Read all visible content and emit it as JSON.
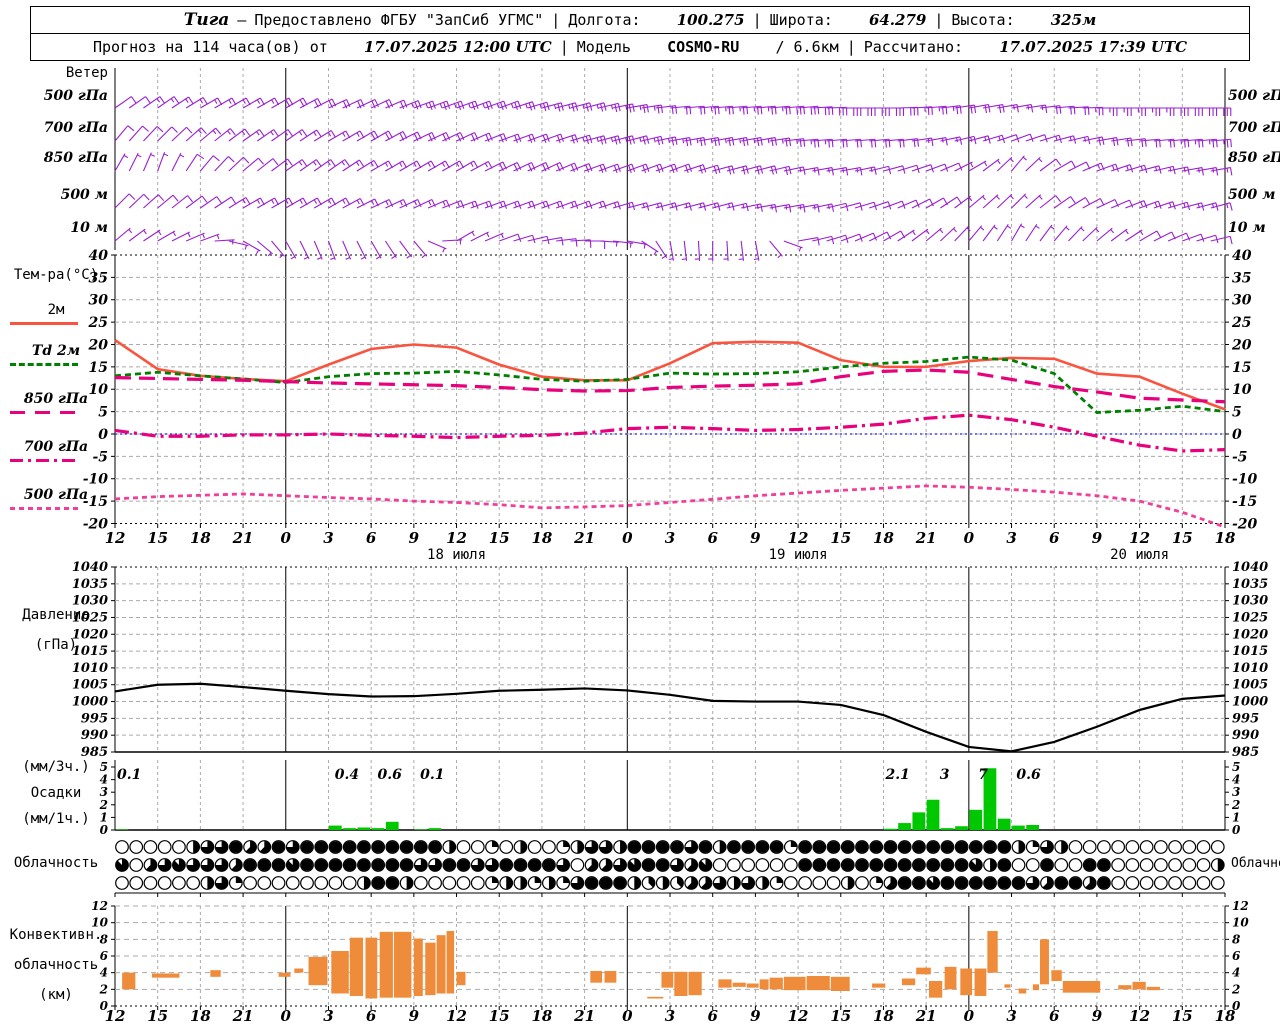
{
  "header": {
    "station": "Тига",
    "dash": "—",
    "provider": "Предоставлено ФГБУ \"ЗапСиб УГМС\"",
    "sep": "|",
    "lon_label": "Долгота:",
    "lon": "100.275",
    "lat_label": "Широта:",
    "lat": "64.279",
    "alt_label": "Высота:",
    "alt": "325м",
    "forecast_label": "Прогноз на 114 часа(ов) от",
    "run_time": "17.07.2025 12:00 UTC",
    "model_label": "Модель",
    "model_name": "COSMO-RU",
    "model_res": "/ 6.6км",
    "calc_label": "Рассчитано:",
    "calc_time": "17.07.2025 17:39 UTC"
  },
  "wind": {
    "title": "Ветер",
    "levels": [
      "500 гПа",
      "700 гПа",
      "850 гПа",
      "500 м",
      "10 м"
    ]
  },
  "temperature": {
    "title": "Тем-ра(°C)",
    "legend": [
      "2м",
      "Td 2м",
      "850 гПа",
      "700 гПа",
      "500 гПа"
    ]
  },
  "pressure_label1": "Давление",
  "pressure_label2": "(гПа)",
  "precip_label1": "(мм/3ч.)",
  "precip_label2": "Осадки",
  "precip_label3": "(мм/1ч.)",
  "cloud_label": "Облачность",
  "conv_label1": "Конвективн.",
  "conv_label2": "облачность",
  "conv_label3": "(км)",
  "colors": {
    "barb": "#9a20d0",
    "t2m": "#f9543f",
    "td2m": "#008000",
    "t850": "#e8007c",
    "t700": "#e8007c",
    "t500": "#f03f9b",
    "pressure": "#000000",
    "precip": "#00c800",
    "convective": "#ef8c3c",
    "grid": "#aaaaaa",
    "zero_line": "#2020ff"
  },
  "chart_data": [
    {
      "id": "time_axis",
      "type": "axis",
      "step_hours": 3,
      "total_hours": 78,
      "hour_labels": [
        12,
        15,
        18,
        21,
        0,
        3,
        6,
        9,
        12,
        15,
        18,
        21,
        0,
        3,
        6,
        9,
        12,
        15,
        18,
        21,
        0,
        3,
        6,
        9,
        12,
        15,
        18
      ],
      "midnight_hours": [
        12,
        36,
        60
      ],
      "dates": [
        {
          "t": 24,
          "label": "18 июля"
        },
        {
          "t": 48,
          "label": "19 июля"
        },
        {
          "t": 72,
          "label": "20 июля"
        }
      ]
    },
    {
      "id": "wind_barbs",
      "type": "barbs",
      "levels": [
        "500 гПа",
        "700 гПа",
        "850 гПа",
        "500 м",
        "10 м"
      ],
      "dirs": [
        [
          55,
          55,
          60,
          60,
          60,
          65,
          65,
          70,
          70,
          70,
          75,
          75,
          80,
          85,
          85,
          85,
          85,
          90,
          90,
          85,
          80,
          80,
          85,
          90,
          90,
          90,
          90
        ],
        [
          40,
          45,
          50,
          55,
          55,
          60,
          60,
          65,
          65,
          70,
          70,
          75,
          75,
          80,
          80,
          80,
          85,
          85,
          85,
          80,
          75,
          70,
          75,
          80,
          85,
          85,
          85
        ],
        [
          30,
          20,
          40,
          50,
          55,
          55,
          60,
          60,
          60,
          65,
          65,
          70,
          70,
          70,
          75,
          75,
          80,
          80,
          75,
          70,
          60,
          40,
          60,
          70,
          75,
          80,
          80
        ],
        [
          45,
          50,
          55,
          60,
          60,
          60,
          65,
          65,
          70,
          70,
          70,
          70,
          75,
          75,
          75,
          80,
          80,
          75,
          70,
          60,
          50,
          45,
          55,
          65,
          70,
          75,
          75
        ],
        [
          50,
          60,
          70,
          120,
          150,
          160,
          150,
          140,
          60,
          70,
          80,
          90,
          100,
          170,
          180,
          170,
          80,
          70,
          60,
          50,
          40,
          30,
          40,
          50,
          60,
          70,
          80
        ]
      ],
      "speeds_kt": [
        [
          10,
          15,
          15,
          15,
          20,
          20,
          20,
          25,
          25,
          25,
          25,
          25,
          25,
          20,
          25,
          25,
          30,
          30,
          30,
          25,
          20,
          15,
          20,
          25,
          25,
          30,
          30
        ],
        [
          10,
          10,
          15,
          15,
          15,
          15,
          20,
          20,
          20,
          20,
          20,
          25,
          25,
          25,
          25,
          25,
          25,
          20,
          20,
          15,
          15,
          10,
          15,
          20,
          20,
          25,
          25
        ],
        [
          5,
          5,
          10,
          10,
          15,
          15,
          15,
          15,
          15,
          20,
          20,
          20,
          20,
          20,
          20,
          20,
          15,
          15,
          10,
          10,
          5,
          5,
          10,
          15,
          15,
          15,
          15
        ],
        [
          10,
          10,
          10,
          15,
          15,
          15,
          15,
          15,
          15,
          15,
          15,
          15,
          15,
          15,
          15,
          15,
          15,
          10,
          10,
          10,
          5,
          5,
          10,
          10,
          15,
          15,
          15
        ],
        [
          5,
          5,
          5,
          5,
          5,
          5,
          5,
          5,
          5,
          8,
          8,
          8,
          5,
          5,
          5,
          5,
          8,
          8,
          8,
          5,
          5,
          3,
          5,
          5,
          8,
          8,
          8
        ]
      ]
    },
    {
      "id": "temperature",
      "type": "line",
      "ylim": [
        -20,
        40
      ],
      "ytick_step": 5,
      "zero_line": 0,
      "series": [
        {
          "name": "2м",
          "style": "solid",
          "values": [
            21,
            14.5,
            13,
            12.3,
            11.8,
            15.5,
            19,
            20,
            19.3,
            15.5,
            12.8,
            12,
            12,
            15.8,
            20.3,
            20.6,
            20.4,
            16.5,
            15,
            15,
            16.3,
            17,
            16.8,
            13.5,
            12.8,
            9,
            5.5
          ]
        },
        {
          "name": "Td 2м",
          "style": "dashed",
          "values": [
            13,
            13.8,
            13,
            12.3,
            11.5,
            12.8,
            13.5,
            13.6,
            14,
            13.2,
            12.2,
            11.8,
            12.2,
            13.6,
            13.4,
            13.5,
            13.9,
            15,
            15.8,
            16.2,
            17.2,
            16.5,
            13.5,
            4.8,
            5.3,
            6.2,
            5
          ]
        },
        {
          "name": "850 гПа",
          "style": "longdash",
          "values": [
            12.6,
            12.4,
            12.2,
            12,
            11.7,
            11.4,
            11.2,
            11,
            10.8,
            10.4,
            9.9,
            9.6,
            9.7,
            10.4,
            10.7,
            10.9,
            11.2,
            12.8,
            14,
            14.3,
            13.8,
            12.2,
            10.6,
            9.4,
            8,
            7.6,
            7.2
          ]
        },
        {
          "name": "700 гПа",
          "style": "dashdot",
          "values": [
            0.8,
            -0.5,
            -0.5,
            -0.2,
            -0.2,
            0,
            -0.3,
            -0.5,
            -0.8,
            -0.5,
            -0.3,
            0.2,
            1.2,
            1.5,
            1.2,
            0.8,
            1,
            1.5,
            2.2,
            3.5,
            4.2,
            3.2,
            1.5,
            -0.5,
            -2.5,
            -3.8,
            -3.5
          ]
        },
        {
          "name": "500 гПа",
          "style": "shortdash",
          "values": [
            -14.5,
            -14,
            -13.7,
            -13.4,
            -13.8,
            -14.2,
            -14.5,
            -15,
            -15.3,
            -15.8,
            -16.5,
            -16.3,
            -16,
            -15.3,
            -14.6,
            -13.8,
            -13.2,
            -12.6,
            -12.1,
            -11.6,
            -11.9,
            -12.4,
            -13,
            -13.8,
            -15,
            -17.5,
            -20.8
          ]
        }
      ]
    },
    {
      "id": "pressure",
      "type": "line",
      "ylim": [
        985,
        1040
      ],
      "ytick_step": 5,
      "values": [
        1003,
        1005,
        1005.3,
        1004.3,
        1003.2,
        1002.2,
        1001.5,
        1001.6,
        1002.3,
        1003.2,
        1003.5,
        1003.9,
        1003.3,
        1002,
        1000.2,
        1000,
        1000,
        999,
        996,
        991,
        986.5,
        985.2,
        988,
        992.5,
        997.5,
        1000.8,
        1001.8
      ]
    },
    {
      "id": "precip",
      "type": "bar",
      "ylim": [
        0,
        5.5
      ],
      "yticks": [
        0,
        1,
        2,
        3,
        4,
        5
      ],
      "bars_mm_per_hour": [
        [
          0,
          0.05
        ],
        [
          15,
          0.35
        ],
        [
          16,
          0.15
        ],
        [
          17,
          0.2
        ],
        [
          18,
          0.15
        ],
        [
          19,
          0.65
        ],
        [
          21,
          0.05
        ],
        [
          22,
          0.15
        ],
        [
          54,
          0.1
        ],
        [
          55,
          0.55
        ],
        [
          56,
          1.4
        ],
        [
          57,
          2.4
        ],
        [
          58,
          0.15
        ],
        [
          59,
          0.3
        ],
        [
          60,
          1.6
        ],
        [
          61,
          4.9
        ],
        [
          62,
          0.9
        ],
        [
          63,
          0.35
        ],
        [
          64,
          0.4
        ]
      ],
      "labels_mm_per_3h": [
        [
          1,
          "0.1"
        ],
        [
          16.3,
          "0.4"
        ],
        [
          19.3,
          "0.6"
        ],
        [
          22.3,
          "0.1"
        ],
        [
          55,
          "2.1"
        ],
        [
          58.3,
          "3"
        ],
        [
          61,
          "7"
        ],
        [
          64.2,
          "0.6"
        ]
      ]
    },
    {
      "id": "cloud",
      "type": "heatmap",
      "okta_scale": 8,
      "rows": [
        "000004668558688888888884002040024664888868488882888888888888888426400000000000",
        "705676665888788888888668866888860556788657000000888888888888748008008800000004",
        "000000462000000004884000002442426888434355646420000402588788888865885800000000"
      ]
    },
    {
      "id": "convective",
      "type": "bar",
      "ylim": [
        0,
        13
      ],
      "yticks": [
        0,
        2,
        4,
        6,
        8,
        10,
        12
      ],
      "blocks_t0_t1_base_top_km": [
        [
          0.5,
          1.5,
          2,
          4
        ],
        [
          2.6,
          4.6,
          3.4,
          3.9
        ],
        [
          6.7,
          7.5,
          3.5,
          4.3
        ],
        [
          11.5,
          12.4,
          3.5,
          4
        ],
        [
          12.6,
          13.3,
          4,
          4.5
        ],
        [
          13.6,
          15,
          2.5,
          5.9
        ],
        [
          15.2,
          16.5,
          1.5,
          6.6
        ],
        [
          16.5,
          17.5,
          1.2,
          8.2
        ],
        [
          17.6,
          18.5,
          0.9,
          8.2
        ],
        [
          18.6,
          19.6,
          1,
          8.9
        ],
        [
          19.6,
          20.9,
          1,
          8.9
        ],
        [
          21,
          21.7,
          1.2,
          8.1
        ],
        [
          21.8,
          22.6,
          1.3,
          7.6
        ],
        [
          22.6,
          23.3,
          1.5,
          8.5
        ],
        [
          23.3,
          23.9,
          1.5,
          9
        ],
        [
          24,
          24.7,
          2.5,
          4.1
        ],
        [
          33.4,
          34.3,
          2.8,
          4.2
        ],
        [
          34.4,
          35.3,
          2.8,
          4.2
        ],
        [
          37.4,
          38.6,
          0.9,
          1.1
        ],
        [
          38.4,
          39.3,
          2.2,
          4.1
        ],
        [
          39.3,
          40.3,
          1.2,
          4.1
        ],
        [
          40.3,
          41.3,
          1.3,
          4.1
        ],
        [
          42.4,
          43.4,
          2.2,
          3.2
        ],
        [
          43.4,
          44.4,
          2.3,
          2.8
        ],
        [
          44.4,
          45.3,
          2.2,
          2.7
        ],
        [
          45.3,
          46,
          2,
          3.2
        ],
        [
          46,
          47,
          2,
          3.4
        ],
        [
          47,
          48.6,
          1.9,
          3.5
        ],
        [
          48.6,
          50.3,
          1.9,
          3.6
        ],
        [
          50.3,
          51.7,
          1.8,
          3.5
        ],
        [
          53.2,
          54.2,
          2.2,
          2.7
        ],
        [
          55.3,
          56.3,
          2.5,
          3.3
        ],
        [
          56.3,
          57.4,
          3.8,
          4.6
        ],
        [
          57.2,
          58.2,
          1,
          3
        ],
        [
          58.3,
          59.2,
          2,
          4.7
        ],
        [
          59.4,
          60.3,
          1.3,
          4.5
        ],
        [
          60.4,
          61.3,
          1.2,
          4.5
        ],
        [
          61.3,
          62.1,
          4,
          9
        ],
        [
          62.5,
          63,
          2.2,
          2.6
        ],
        [
          63.5,
          64.1,
          1.5,
          2.1
        ],
        [
          64.5,
          65,
          1.9,
          2.6
        ],
        [
          65,
          65.7,
          2.6,
          8
        ],
        [
          65.8,
          66.6,
          3,
          4.3
        ],
        [
          66.6,
          69.3,
          1.6,
          3
        ],
        [
          70.5,
          71.5,
          2,
          2.5
        ],
        [
          71.5,
          72.5,
          2,
          2.9
        ],
        [
          72.5,
          73.5,
          1.9,
          2.3
        ]
      ]
    }
  ]
}
